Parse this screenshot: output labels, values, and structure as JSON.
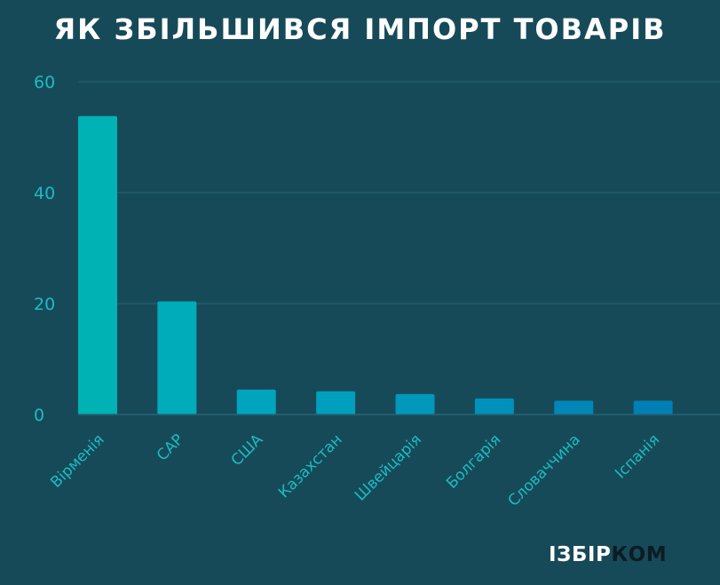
{
  "chart_data": {
    "type": "bar",
    "title": "ЯК ЗБІЛЬШИВСЯ ІМПОРТ ТОВАРІВ",
    "xlabel": "",
    "ylabel": "",
    "categories": [
      "Вірменія",
      "САР",
      "США",
      "Казахстан",
      "Швейцарія",
      "Болгарія",
      "Словаччина",
      "Іспанія"
    ],
    "values": [
      53.8,
      20.4,
      4.5,
      4.2,
      3.7,
      2.9,
      2.5,
      2.5
    ],
    "ylim": [
      0,
      60
    ],
    "yticks": [
      "0",
      "20",
      "40",
      "60"
    ],
    "grid": true,
    "legend": "none",
    "bar_colors": [
      "#00b2b3",
      "#00abba",
      "#00a4bd",
      "#009fbd",
      "#0097bd",
      "#0090bc",
      "#0087b8",
      "#007fb4"
    ],
    "tick_color": "#1bbcc2",
    "grid_color": "#236576"
  },
  "brand": {
    "part1": "ІЗБІР",
    "part2": "КОМ"
  }
}
